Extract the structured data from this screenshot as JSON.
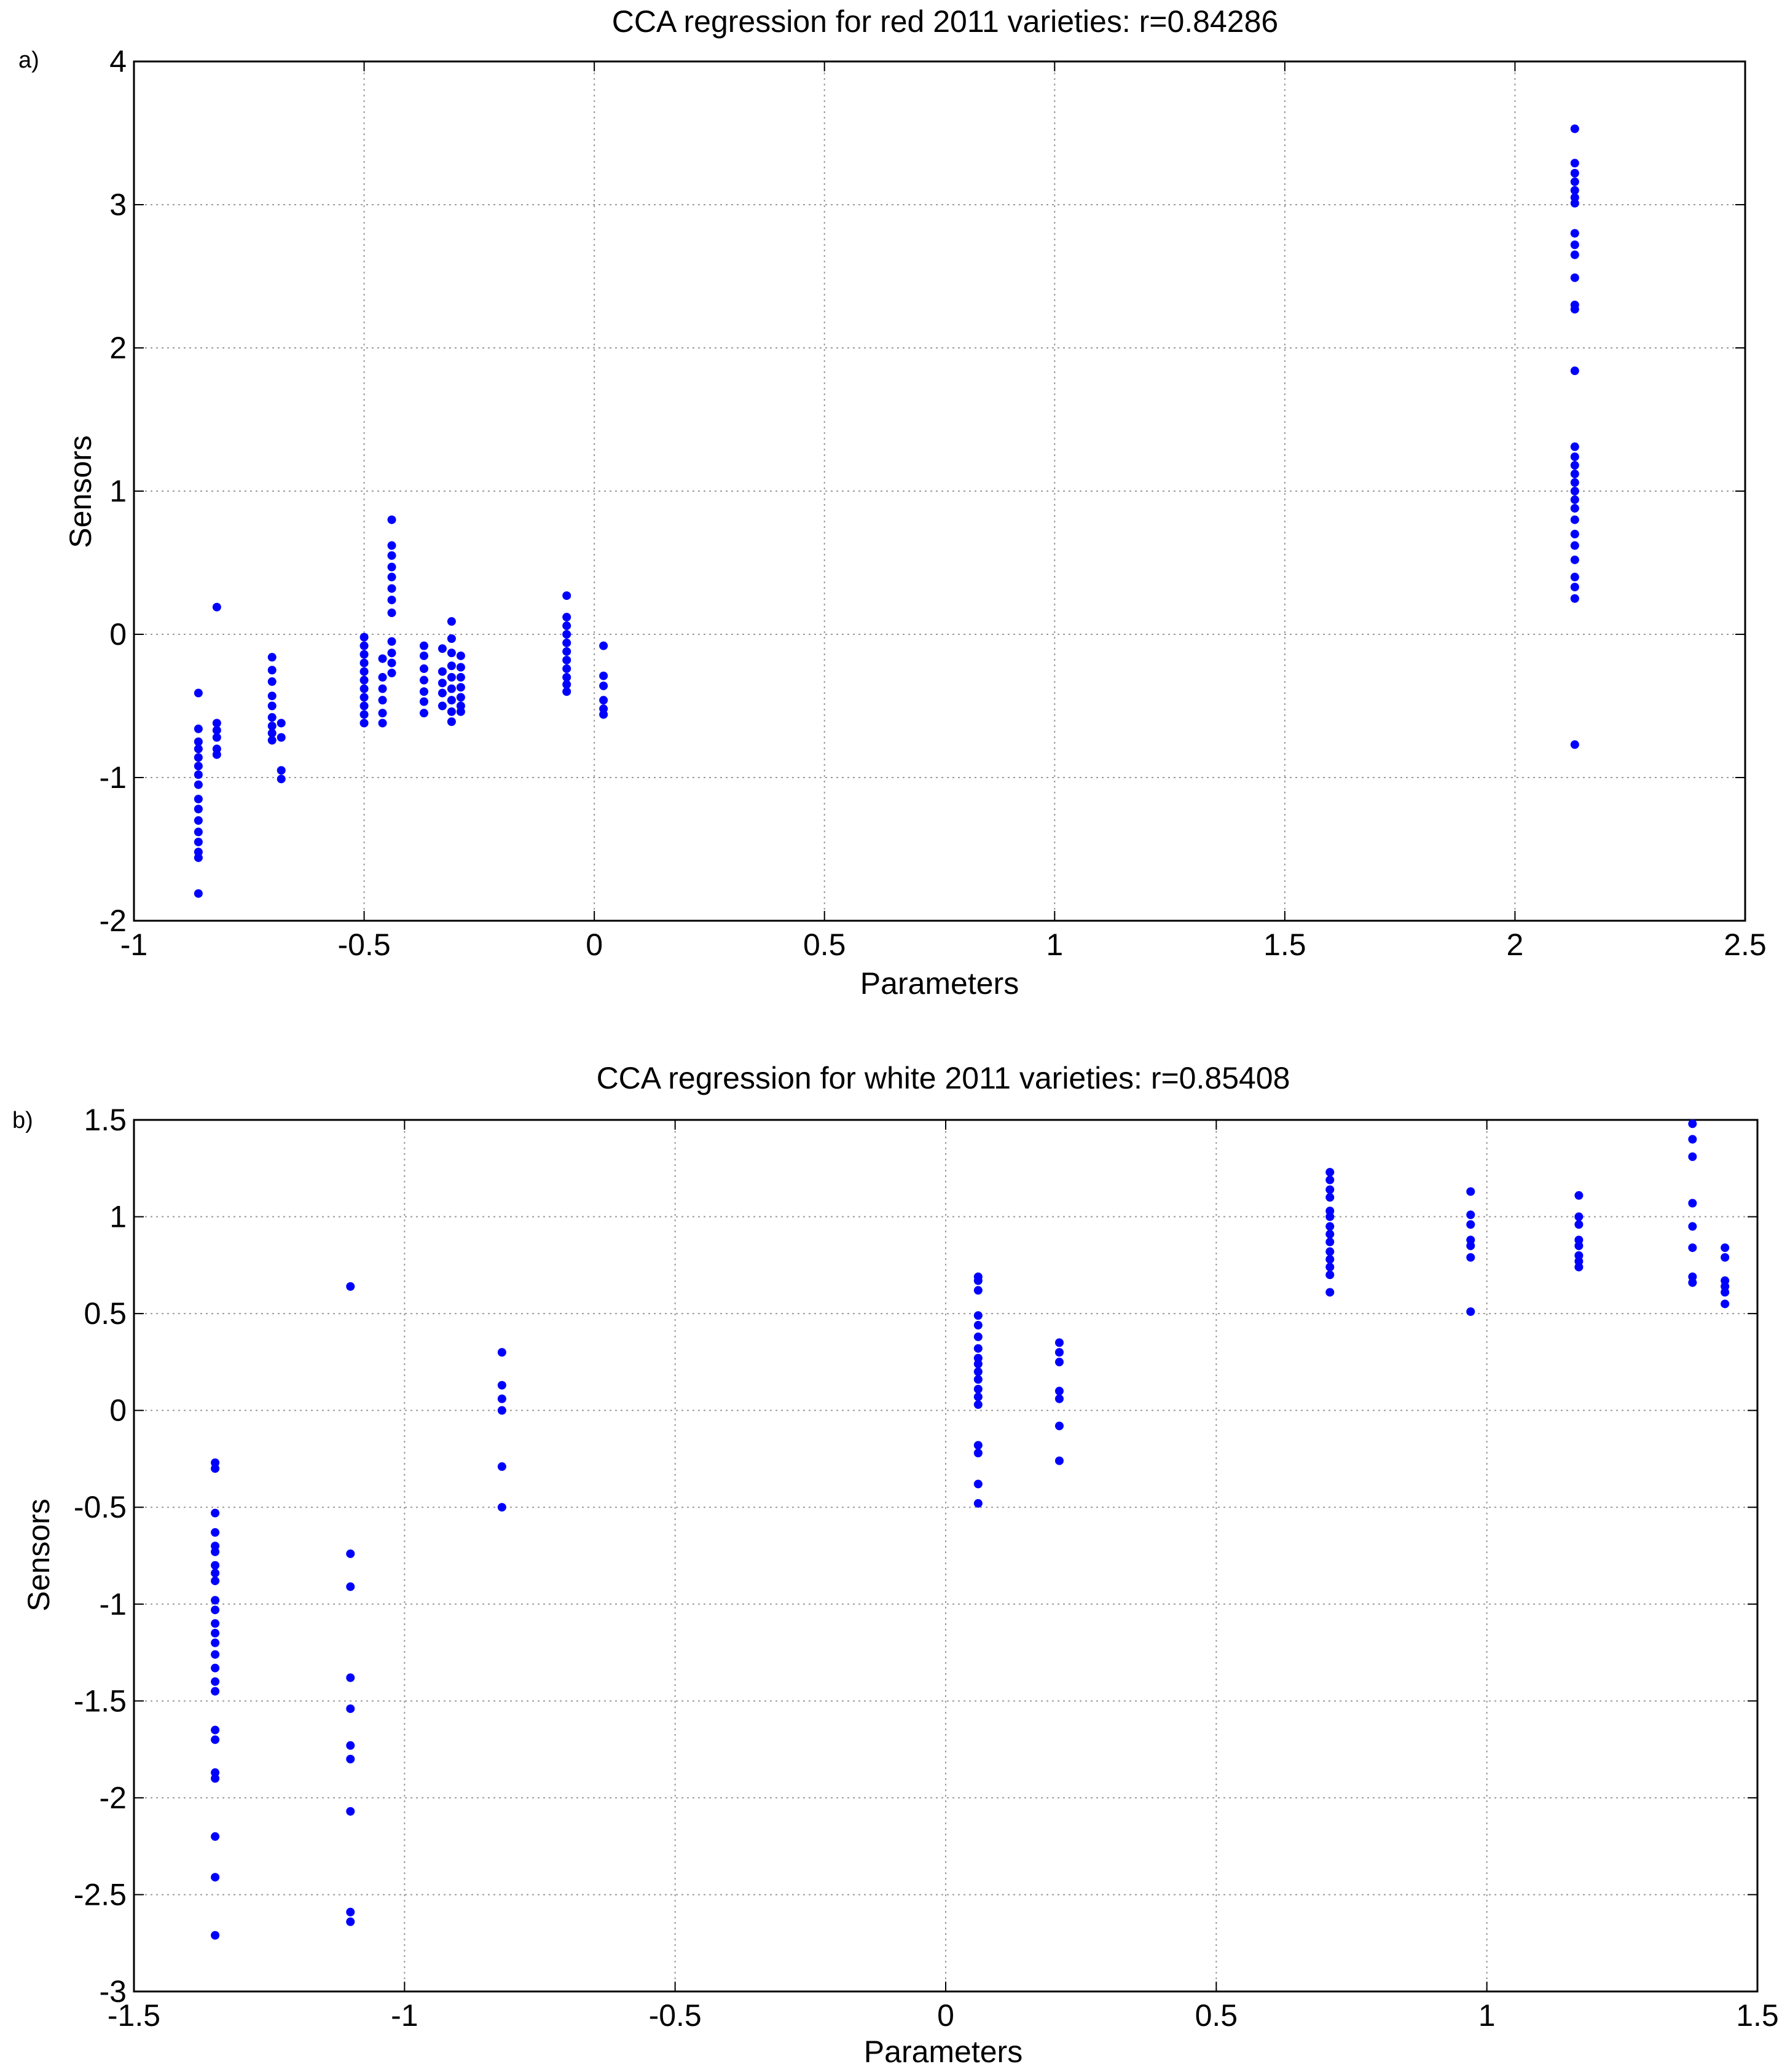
{
  "chart_data": [
    {
      "panel_label": "a)",
      "type": "scatter",
      "title": "CCA regression for red 2011 varieties: r=0.84286",
      "xlabel": "Parameters",
      "ylabel": "Sensors",
      "xlim": [
        -1,
        2.5
      ],
      "ylim": [
        -2,
        4
      ],
      "xticks": [
        -1,
        -0.5,
        0,
        0.5,
        1,
        1.5,
        2,
        2.5
      ],
      "xtick_labels": [
        "-1",
        "-0.5",
        "0",
        "0.5",
        "1",
        "1.5",
        "2",
        "2.5"
      ],
      "yticks": [
        -2,
        -1,
        0,
        1,
        2,
        3,
        4
      ],
      "ytick_labels": [
        "-2",
        "-1",
        "0",
        "1",
        "2",
        "3",
        "4"
      ],
      "grid": true,
      "marker_color": "#0000ff",
      "groups": [
        {
          "x": -0.86,
          "y": [
            -1.81,
            -1.56,
            -1.52,
            -1.45,
            -1.38,
            -1.3,
            -1.22,
            -1.15,
            -1.05,
            -0.98,
            -0.92,
            -0.86,
            -0.8,
            -0.75,
            -0.66,
            -0.41
          ]
        },
        {
          "x": -0.82,
          "y": [
            0.19,
            -0.62,
            -0.67,
            -0.72,
            -0.8,
            -0.84
          ]
        },
        {
          "x": -0.7,
          "y": [
            -0.16,
            -0.25,
            -0.33,
            -0.43,
            -0.5,
            -0.58,
            -0.64,
            -0.69,
            -0.74
          ]
        },
        {
          "x": -0.68,
          "y": [
            -0.62,
            -0.72,
            -0.95,
            -1.01
          ]
        },
        {
          "x": -0.5,
          "y": [
            -0.02,
            -0.08,
            -0.14,
            -0.2,
            -0.26,
            -0.32,
            -0.38,
            -0.44,
            -0.5,
            -0.56,
            -0.62
          ]
        },
        {
          "x": -0.46,
          "y": [
            -0.17,
            -0.3,
            -0.38,
            -0.46,
            -0.55,
            -0.62
          ]
        },
        {
          "x": -0.44,
          "y": [
            0.8,
            0.62,
            0.55,
            0.47,
            0.4,
            0.32,
            0.24,
            0.15,
            -0.05,
            -0.13,
            -0.2,
            -0.27
          ]
        },
        {
          "x": -0.37,
          "y": [
            -0.08,
            -0.15,
            -0.24,
            -0.32,
            -0.4,
            -0.47,
            -0.55
          ]
        },
        {
          "x": -0.33,
          "y": [
            -0.1,
            -0.26,
            -0.34,
            -0.41,
            -0.5
          ]
        },
        {
          "x": -0.31,
          "y": [
            0.09,
            -0.03,
            -0.13,
            -0.22,
            -0.3,
            -0.38,
            -0.46,
            -0.54,
            -0.61
          ]
        },
        {
          "x": -0.29,
          "y": [
            -0.15,
            -0.23,
            -0.3,
            -0.37,
            -0.44,
            -0.5,
            -0.54
          ]
        },
        {
          "x": -0.06,
          "y": [
            0.27,
            0.12,
            0.06,
            0.0,
            -0.06,
            -0.12,
            -0.18,
            -0.24,
            -0.3,
            -0.35,
            -0.4
          ]
        },
        {
          "x": 0.02,
          "y": [
            -0.08,
            -0.29,
            -0.36,
            -0.46,
            -0.52,
            -0.56
          ]
        },
        {
          "x": 2.13,
          "y": [
            3.53,
            3.29,
            3.22,
            3.16,
            3.1,
            3.05,
            3.01,
            2.8,
            2.72,
            2.65,
            2.49,
            2.3,
            2.27,
            1.84,
            1.31,
            1.24,
            1.18,
            1.12,
            1.06,
            1.0,
            0.94,
            0.88,
            0.8,
            0.7,
            0.62,
            0.52,
            0.4,
            0.33,
            0.25,
            -0.77
          ]
        }
      ]
    },
    {
      "panel_label": "b)",
      "type": "scatter",
      "title": "CCA regression for white 2011 varieties: r=0.85408",
      "xlabel": "Parameters",
      "ylabel": "Sensors",
      "xlim": [
        -1.5,
        1.5
      ],
      "ylim": [
        -3,
        1.5
      ],
      "xticks": [
        -1.5,
        -1,
        -0.5,
        0,
        0.5,
        1,
        1.5
      ],
      "xtick_labels": [
        "-1.5",
        "-1",
        "-0.5",
        "0",
        "0.5",
        "1",
        "1.5"
      ],
      "yticks": [
        -3,
        -2.5,
        -2,
        -1.5,
        -1,
        -0.5,
        0,
        0.5,
        1,
        1.5
      ],
      "ytick_labels": [
        "-3",
        "-2.5",
        "-2",
        "-1.5",
        "-1",
        "-0.5",
        "0",
        "0.5",
        "1",
        "1.5"
      ],
      "grid": true,
      "marker_color": "#0000ff",
      "groups": [
        {
          "x": -1.35,
          "y": [
            -0.27,
            -0.3,
            -0.53,
            -0.63,
            -0.7,
            -0.73,
            -0.8,
            -0.84,
            -0.88,
            -0.98,
            -1.03,
            -1.1,
            -1.15,
            -1.2,
            -1.26,
            -1.33,
            -1.4,
            -1.45,
            -1.65,
            -1.7,
            -1.87,
            -1.9,
            -2.2,
            -2.41,
            -2.71
          ]
        },
        {
          "x": -1.1,
          "y": [
            0.64,
            -0.74,
            -0.91,
            -1.38,
            -1.54,
            -1.73,
            -1.8,
            -2.07,
            -2.59,
            -2.64
          ]
        },
        {
          "x": -0.82,
          "y": [
            0.3,
            0.13,
            0.06,
            0.0,
            -0.29,
            -0.5
          ]
        },
        {
          "x": 0.06,
          "y": [
            0.69,
            0.67,
            0.62,
            0.49,
            0.44,
            0.38,
            0.32,
            0.27,
            0.24,
            0.2,
            0.16,
            0.11,
            0.07,
            0.03,
            -0.18,
            -0.22,
            -0.38,
            -0.48
          ]
        },
        {
          "x": 0.21,
          "y": [
            0.35,
            0.3,
            0.25,
            0.1,
            0.06,
            -0.08,
            -0.26
          ]
        },
        {
          "x": 0.71,
          "y": [
            1.23,
            1.19,
            1.14,
            1.1,
            1.03,
            1.0,
            0.95,
            0.91,
            0.87,
            0.82,
            0.78,
            0.74,
            0.7,
            0.61
          ]
        },
        {
          "x": 0.97,
          "y": [
            1.13,
            1.01,
            0.96,
            0.88,
            0.85,
            0.79,
            0.51
          ]
        },
        {
          "x": 1.17,
          "y": [
            1.11,
            1.0,
            0.96,
            0.88,
            0.85,
            0.8,
            0.77,
            0.74
          ]
        },
        {
          "x": 1.38,
          "y": [
            1.48,
            1.4,
            1.31,
            1.07,
            0.95,
            0.84,
            0.69,
            0.66
          ]
        },
        {
          "x": 1.44,
          "y": [
            0.84,
            0.79,
            0.67,
            0.64,
            0.61,
            0.55
          ]
        }
      ]
    }
  ]
}
